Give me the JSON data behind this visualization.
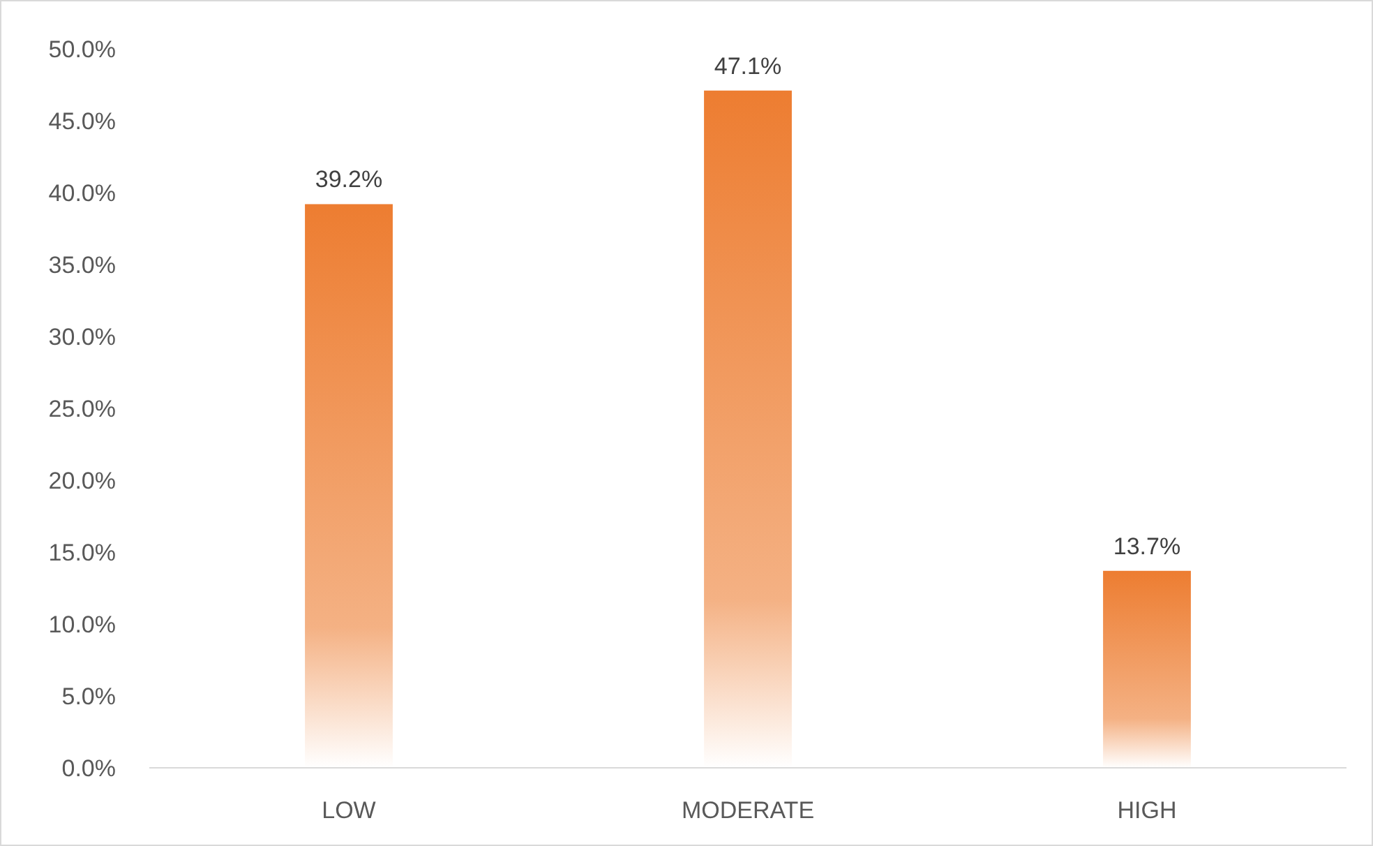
{
  "chart_data": {
    "type": "bar",
    "categories": [
      "LOW",
      "MODERATE",
      "HIGH"
    ],
    "values": [
      39.2,
      47.1,
      13.7
    ],
    "value_labels": [
      "39.2%",
      "47.1%",
      "13.7%"
    ],
    "color": "#ed7d31",
    "ylim": [
      0,
      50
    ],
    "yticks": [
      {
        "value": 0,
        "label": "0.0%"
      },
      {
        "value": 5,
        "label": "5.0%"
      },
      {
        "value": 10,
        "label": "10.0%"
      },
      {
        "value": 15,
        "label": "15.0%"
      },
      {
        "value": 20,
        "label": "20.0%"
      },
      {
        "value": 25,
        "label": "25.0%"
      },
      {
        "value": 30,
        "label": "30.0%"
      },
      {
        "value": 35,
        "label": "35.0%"
      },
      {
        "value": 40,
        "label": "40.0%"
      },
      {
        "value": 45,
        "label": "45.0%"
      },
      {
        "value": 50,
        "label": "50.0%"
      }
    ],
    "grid": false
  }
}
